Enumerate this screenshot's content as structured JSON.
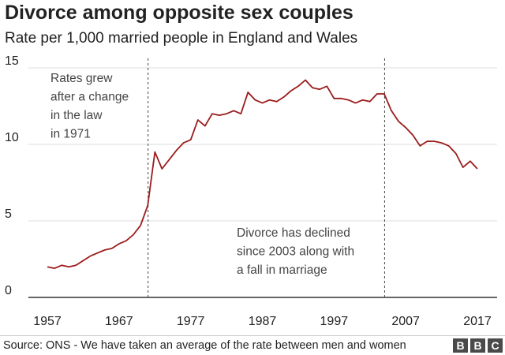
{
  "title": "Divorce among opposite sex couples",
  "subtitle": "Rate per 1,000 married people in England and Wales",
  "source": "Source: ONS - We have taken an average of the rate between men and women",
  "logo_text": "BBC",
  "colors": {
    "line": "#9b1b1b",
    "grid": "#dddddd",
    "axis": "#333333",
    "marker": "#444444"
  },
  "chart_data": {
    "type": "line",
    "title": "Divorce among opposite sex couples",
    "subtitle": "Rate per 1,000 married people in England and Wales",
    "xlabel": "",
    "ylabel": "",
    "xlim": [
      1957,
      2017
    ],
    "ylim": [
      0,
      15
    ],
    "x_ticks": [
      1957,
      1967,
      1977,
      1987,
      1997,
      2007,
      2017
    ],
    "y_ticks": [
      0,
      5,
      10,
      15
    ],
    "grid": true,
    "series": [
      {
        "x": [
          1957,
          1958,
          1959,
          1960,
          1961,
          1962,
          1963,
          1964,
          1965,
          1966,
          1967,
          1968,
          1969,
          1970,
          1971,
          1972,
          1973,
          1974,
          1975,
          1976,
          1977,
          1978,
          1979,
          1980,
          1981,
          1982,
          1983,
          1984,
          1985,
          1986,
          1987,
          1988,
          1989,
          1990,
          1991,
          1992,
          1993,
          1994,
          1995,
          1996,
          1997,
          1998,
          1999,
          2000,
          2001,
          2002,
          2003,
          2004,
          2005,
          2006,
          2007,
          2008,
          2009,
          2010,
          2011,
          2012,
          2013,
          2014,
          2015,
          2016,
          2017
        ],
        "values": [
          2.0,
          1.9,
          2.1,
          2.0,
          2.1,
          2.4,
          2.7,
          2.9,
          3.1,
          3.2,
          3.5,
          3.7,
          4.1,
          4.7,
          6.0,
          9.5,
          8.4,
          9.0,
          9.6,
          10.1,
          10.3,
          11.6,
          11.2,
          12.0,
          11.9,
          12.0,
          12.2,
          12.0,
          13.4,
          12.9,
          12.7,
          12.9,
          12.8,
          13.1,
          13.5,
          13.8,
          14.2,
          13.7,
          13.6,
          13.8,
          13.0,
          13.0,
          12.9,
          12.7,
          12.9,
          12.8,
          13.3,
          13.3,
          12.2,
          11.5,
          11.1,
          10.6,
          9.9,
          10.2,
          10.2,
          10.1,
          9.9,
          9.4,
          8.5,
          8.9,
          8.4
        ]
      }
    ],
    "markers": [
      1971,
      2004
    ],
    "annotations": [
      {
        "lines": [
          "Rates grew",
          "after a change",
          "in the law",
          "in 1971"
        ]
      },
      {
        "lines": [
          "Divorce has declined",
          "since 2003 along with",
          "a fall in marriage"
        ]
      }
    ]
  }
}
